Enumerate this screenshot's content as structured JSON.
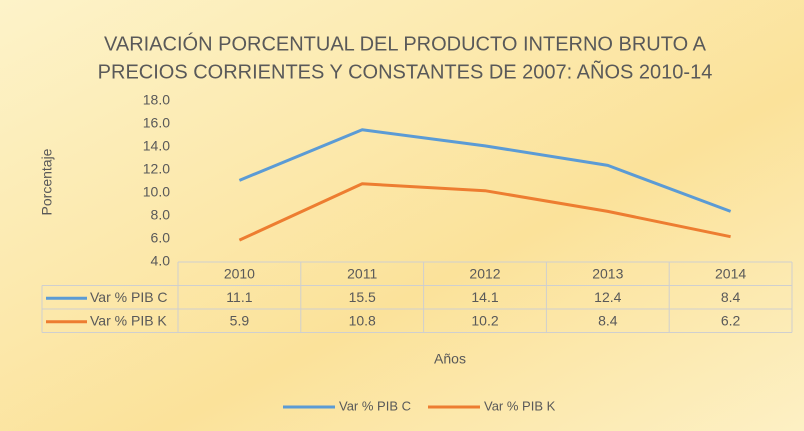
{
  "chart_data": {
    "type": "line",
    "title": [
      "VARIACIÓN PORCENTUAL DEL PRODUCTO INTERNO BRUTO A",
      "PRECIOS CORRIENTES Y CONSTANTES DE 2007: AÑOS 2010-14"
    ],
    "y_label": "Porcentaje",
    "x_label": "Años",
    "categories": [
      "2010",
      "2011",
      "2012",
      "2013",
      "2014"
    ],
    "series": [
      {
        "name": "Var % PIB C",
        "color": "#5b9bd5",
        "values": [
          11.1,
          15.5,
          14.1,
          12.4,
          8.4
        ]
      },
      {
        "name": "Var % PIB K",
        "color": "#ed7d31",
        "values": [
          5.9,
          10.8,
          10.2,
          8.4,
          6.2
        ]
      }
    ],
    "ylim": [
      4,
      18
    ],
    "yticks": [
      {
        "value": 4,
        "label": "4.0"
      },
      {
        "value": 6,
        "label": "6.0"
      },
      {
        "value": 8,
        "label": "8.0"
      },
      {
        "value": 10,
        "label": "10.0"
      },
      {
        "value": 12,
        "label": "12.0"
      },
      {
        "value": 14,
        "label": "14.0"
      },
      {
        "value": 16,
        "label": "16.0"
      },
      {
        "value": 18,
        "label": "18.0"
      }
    ],
    "grid": false,
    "data_table": true,
    "legend": "bottom"
  }
}
